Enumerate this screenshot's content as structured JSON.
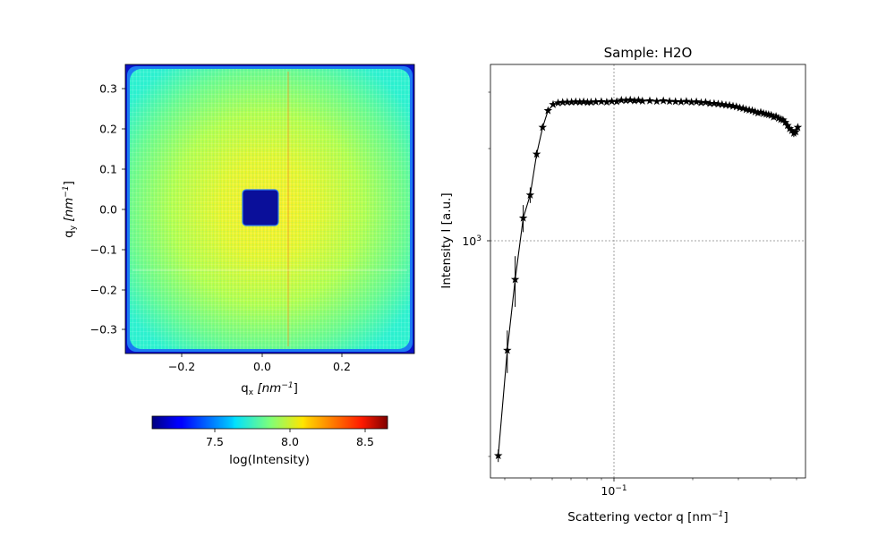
{
  "chart_data": [
    {
      "type": "heatmap",
      "title": "",
      "xlabel": "q",
      "xlabel_sub": "x",
      "xlabel_unit": "[nm",
      "xlabel_unit_exp": "−1",
      "xlabel_unit_close": "]",
      "ylabel": "q",
      "ylabel_sub": "y",
      "ylabel_unit": "[nm",
      "ylabel_unit_exp": "−1",
      "ylabel_unit_close": "]",
      "xlim": [
        -0.36,
        0.38
      ],
      "ylim": [
        -0.36,
        0.36
      ],
      "xticks": [
        -0.2,
        0.0,
        0.2
      ],
      "xtick_labels": [
        "−0.2",
        "0.0",
        "0.2"
      ],
      "yticks": [
        0.3,
        0.2,
        0.1,
        0.0,
        -0.1,
        -0.2,
        -0.3
      ],
      "ytick_labels": [
        "0.3",
        "0.2",
        "0.1",
        "0.0",
        "−0.1",
        "−0.2",
        "−0.3"
      ],
      "colormap": "jet",
      "beamstop": {
        "qx": [
          -0.05,
          0.04
        ],
        "qy": [
          -0.04,
          0.045
        ],
        "value": 7.05
      },
      "colorbar": {
        "label": "log(Intensity)",
        "range": [
          7.05,
          8.65
        ],
        "ticks": [
          7.5,
          8.0,
          8.5
        ],
        "tick_labels": [
          "7.5",
          "8.0",
          "8.5"
        ]
      }
    },
    {
      "type": "line",
      "title": "Sample: H2O",
      "xlabel": "Scattering vector q [nm",
      "xlabel_exp": "−1",
      "xlabel_close": "]",
      "ylabel": "Intensity I [a.u.]",
      "x_scale": "log",
      "y_scale": "log",
      "xlim": [
        0.04,
        0.62
      ],
      "ylim": [
        260,
        3700
      ],
      "xtick": {
        "value": 0.1,
        "base": "10",
        "exp": "−1"
      },
      "ytick": {
        "value": 1000,
        "base": "10",
        "exp": "3"
      },
      "grid": true,
      "marker": "star",
      "color": "#000000",
      "series": [
        {
          "x": [
            0.0428,
            0.0463,
            0.0496,
            0.0532,
            0.0565,
            0.0598,
            0.063,
            0.066,
            0.069,
            0.072,
            0.075,
            0.078,
            0.081,
            0.084,
            0.087,
            0.09,
            0.093,
            0.096,
            0.1,
            0.105,
            0.11,
            0.115,
            0.12,
            0.125,
            0.13,
            0.135,
            0.14,
            0.145,
            0.15,
            0.16,
            0.17,
            0.18,
            0.19,
            0.2,
            0.21,
            0.22,
            0.23,
            0.24,
            0.25,
            0.26,
            0.27,
            0.28,
            0.29,
            0.3,
            0.31,
            0.32,
            0.33,
            0.34,
            0.35,
            0.36,
            0.37,
            0.38,
            0.39,
            0.4,
            0.41,
            0.42,
            0.43,
            0.44,
            0.45,
            0.46,
            0.47,
            0.48,
            0.49,
            0.5,
            0.51,
            0.52,
            0.53,
            0.54,
            0.55,
            0.56,
            0.57,
            0.58
          ],
          "y": [
            300,
            590,
            930,
            1380,
            1600,
            2080,
            2470,
            2750,
            2860,
            2890,
            2900,
            2905,
            2905,
            2910,
            2905,
            2910,
            2900,
            2905,
            2910,
            2915,
            2905,
            2920,
            2915,
            2940,
            2935,
            2945,
            2930,
            2940,
            2925,
            2930,
            2920,
            2930,
            2920,
            2915,
            2910,
            2920,
            2905,
            2910,
            2895,
            2900,
            2880,
            2880,
            2870,
            2860,
            2850,
            2845,
            2830,
            2820,
            2800,
            2790,
            2770,
            2760,
            2750,
            2730,
            2710,
            2720,
            2700,
            2690,
            2680,
            2670,
            2640,
            2650,
            2620,
            2600,
            2590,
            2550,
            2500,
            2450,
            2420,
            2380,
            2400,
            2470
          ],
          "err": [
            12,
            80,
            150,
            120,
            80,
            55,
            30,
            20,
            10,
            10,
            10,
            10,
            10,
            10,
            10,
            10,
            10,
            10,
            10,
            10,
            10,
            10,
            10,
            10,
            10,
            10,
            10,
            10,
            10,
            10,
            10,
            10,
            10,
            10,
            10,
            10,
            10,
            10,
            10,
            10,
            10,
            10,
            10,
            10,
            10,
            10,
            10,
            10,
            10,
            10,
            10,
            10,
            10,
            10,
            10,
            10,
            10,
            10,
            10,
            10,
            10,
            10,
            10,
            10,
            10,
            10,
            20,
            30,
            40,
            60,
            50,
            40
          ]
        }
      ]
    }
  ]
}
